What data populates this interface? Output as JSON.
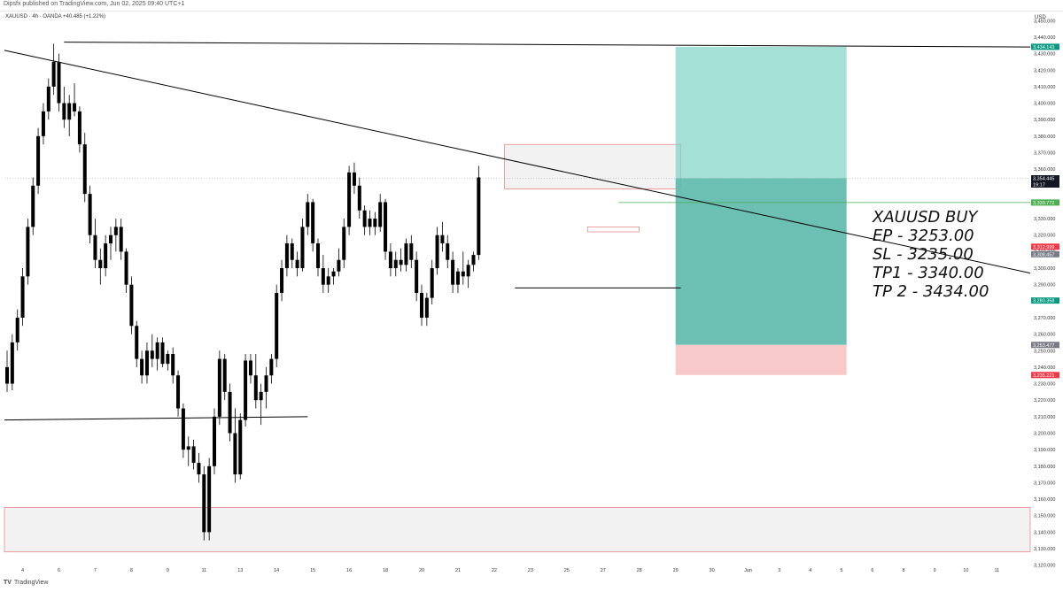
{
  "header": {
    "publisher": "Dipsfx published on TradingView.com, Jun 02, 2025 09:40 UTC+1"
  },
  "symbol": {
    "line": "XAUUSD · 4h · OANDA  +40.485 (+1.22%)"
  },
  "axis": {
    "currency": "USD"
  },
  "footer": {
    "logo": "TV",
    "brand": "TradingView"
  },
  "colors": {
    "bull": "#000000",
    "bear": "#000000",
    "target_zone": "#7fd3c6",
    "entry_zone": "#5cb8ab",
    "stop_zone": "#f8c9c9",
    "supply_fill": "#f2f2f2",
    "zone_border": "#e06666",
    "tag_tp": "#089981",
    "tag_last": "#131722",
    "tag_green": "#4caf50",
    "tag_red": "#f23645",
    "tag_gray": "#787b86"
  },
  "chart_data": {
    "type": "candlestick",
    "title": "",
    "ylim": [
      3115,
      3455
    ],
    "y_ticks": [
      3120,
      3130,
      3140,
      3150,
      3160,
      3170,
      3180,
      3190,
      3200,
      3210,
      3220,
      3230,
      3240,
      3250,
      3260,
      3270,
      3280,
      3290,
      3300,
      3310,
      3320,
      3330,
      3340,
      3350,
      3360,
      3370,
      3380,
      3390,
      3400,
      3410,
      3420,
      3430,
      3440,
      3450
    ],
    "x_tick_labels": [
      "4",
      "6",
      "7",
      "8",
      "9",
      "11",
      "13",
      "14",
      "15",
      "16",
      "18",
      "20",
      "21",
      "22",
      "23",
      "25",
      "27",
      "28",
      "29",
      "30",
      "Jun",
      "3",
      "4",
      "5",
      "6",
      "8",
      "9",
      "10",
      "11"
    ],
    "x_tick_bars": [
      3,
      10,
      17,
      24,
      31,
      38,
      45,
      52,
      59,
      66,
      73,
      80,
      87,
      94,
      101,
      108,
      115,
      122,
      129,
      136,
      143,
      149,
      155,
      161,
      167,
      173,
      179,
      185,
      191
    ],
    "candles": [
      [
        3240,
        3250,
        3225,
        3230
      ],
      [
        3230,
        3260,
        3226,
        3255
      ],
      [
        3255,
        3275,
        3250,
        3270
      ],
      [
        3270,
        3300,
        3265,
        3295
      ],
      [
        3295,
        3330,
        3290,
        3325
      ],
      [
        3325,
        3355,
        3320,
        3350
      ],
      [
        3350,
        3385,
        3345,
        3380
      ],
      [
        3380,
        3400,
        3375,
        3395
      ],
      [
        3395,
        3415,
        3390,
        3410
      ],
      [
        3410,
        3436,
        3405,
        3425
      ],
      [
        3425,
        3430,
        3395,
        3400
      ],
      [
        3400,
        3410,
        3385,
        3390
      ],
      [
        3390,
        3405,
        3380,
        3400
      ],
      [
        3400,
        3412,
        3392,
        3395
      ],
      [
        3395,
        3398,
        3370,
        3375
      ],
      [
        3375,
        3382,
        3340,
        3345
      ],
      [
        3345,
        3350,
        3315,
        3320
      ],
      [
        3320,
        3330,
        3300,
        3305
      ],
      [
        3305,
        3312,
        3290,
        3300
      ],
      [
        3300,
        3320,
        3295,
        3315
      ],
      [
        3315,
        3325,
        3305,
        3320
      ],
      [
        3320,
        3330,
        3310,
        3325
      ],
      [
        3325,
        3330,
        3305,
        3310
      ],
      [
        3310,
        3312,
        3285,
        3290
      ],
      [
        3290,
        3295,
        3260,
        3265
      ],
      [
        3265,
        3268,
        3240,
        3245
      ],
      [
        3245,
        3250,
        3230,
        3235
      ],
      [
        3235,
        3255,
        3230,
        3250
      ],
      [
        3250,
        3260,
        3240,
        3245
      ],
      [
        3245,
        3258,
        3238,
        3255
      ],
      [
        3255,
        3258,
        3240,
        3242
      ],
      [
        3242,
        3250,
        3238,
        3248
      ],
      [
        3248,
        3252,
        3230,
        3235
      ],
      [
        3235,
        3238,
        3210,
        3215
      ],
      [
        3215,
        3218,
        3185,
        3190
      ],
      [
        3190,
        3198,
        3180,
        3192
      ],
      [
        3192,
        3196,
        3178,
        3182
      ],
      [
        3182,
        3188,
        3170,
        3175
      ],
      [
        3175,
        3180,
        3135,
        3140
      ],
      [
        3140,
        3185,
        3135,
        3180
      ],
      [
        3180,
        3215,
        3175,
        3210
      ],
      [
        3210,
        3250,
        3205,
        3245
      ],
      [
        3245,
        3248,
        3220,
        3225
      ],
      [
        3225,
        3230,
        3195,
        3200
      ],
      [
        3200,
        3215,
        3170,
        3175
      ],
      [
        3175,
        3212,
        3172,
        3208
      ],
      [
        3208,
        3248,
        3204,
        3244
      ],
      [
        3244,
        3248,
        3230,
        3235
      ],
      [
        3235,
        3248,
        3215,
        3220
      ],
      [
        3220,
        3230,
        3205,
        3225
      ],
      [
        3225,
        3240,
        3215,
        3235
      ],
      [
        3235,
        3248,
        3230,
        3245
      ],
      [
        3245,
        3290,
        3240,
        3285
      ],
      [
        3285,
        3305,
        3280,
        3300
      ],
      [
        3300,
        3320,
        3295,
        3315
      ],
      [
        3315,
        3318,
        3300,
        3305
      ],
      [
        3305,
        3310,
        3295,
        3300
      ],
      [
        3300,
        3330,
        3298,
        3325
      ],
      [
        3325,
        3345,
        3320,
        3340
      ],
      [
        3340,
        3342,
        3310,
        3315
      ],
      [
        3315,
        3318,
        3295,
        3300
      ],
      [
        3300,
        3308,
        3285,
        3290
      ],
      [
        3290,
        3300,
        3285,
        3295
      ],
      [
        3295,
        3300,
        3290,
        3298
      ],
      [
        3298,
        3312,
        3295,
        3305
      ],
      [
        3305,
        3330,
        3300,
        3325
      ],
      [
        3325,
        3362,
        3320,
        3358
      ],
      [
        3358,
        3364,
        3345,
        3350
      ],
      [
        3350,
        3355,
        3330,
        3335
      ],
      [
        3335,
        3338,
        3320,
        3325
      ],
      [
        3325,
        3335,
        3320,
        3330
      ],
      [
        3330,
        3334,
        3320,
        3325
      ],
      [
        3325,
        3345,
        3322,
        3340
      ],
      [
        3340,
        3342,
        3305,
        3310
      ],
      [
        3310,
        3315,
        3295,
        3300
      ],
      [
        3300,
        3310,
        3295,
        3305
      ],
      [
        3305,
        3312,
        3298,
        3302
      ],
      [
        3302,
        3318,
        3298,
        3315
      ],
      [
        3315,
        3320,
        3300,
        3305
      ],
      [
        3305,
        3310,
        3280,
        3285
      ],
      [
        3285,
        3290,
        3265,
        3270
      ],
      [
        3270,
        3285,
        3265,
        3282
      ],
      [
        3282,
        3305,
        3278,
        3300
      ],
      [
        3300,
        3325,
        3296,
        3320
      ],
      [
        3320,
        3328,
        3310,
        3315
      ],
      [
        3315,
        3320,
        3300,
        3305
      ],
      [
        3305,
        3310,
        3285,
        3290
      ],
      [
        3290,
        3300,
        3285,
        3298
      ],
      [
        3298,
        3310,
        3290,
        3295
      ],
      [
        3295,
        3305,
        3288,
        3302
      ],
      [
        3302,
        3310,
        3298,
        3308
      ],
      [
        3308,
        3362,
        3305,
        3355
      ]
    ],
    "levels": {
      "target": 3434.143,
      "last": 3354.445,
      "tp1": 3339.772,
      "red_tag": 3312.999,
      "gray_tag": 3308.457,
      "green_tag": 3280.358,
      "entry": 3253.477,
      "stop": 3235.221
    },
    "tags": [
      {
        "label": "3,434.143",
        "color": "#089981",
        "price": 3434.143
      },
      {
        "label": "3,354.445",
        "sub": "19:17",
        "color": "#131722",
        "price": 3354.445
      },
      {
        "label": "3,339.772",
        "color": "#4caf50",
        "price": 3339.772
      },
      {
        "label": "3,312.999",
        "color": "#f23645",
        "price": 3312.999
      },
      {
        "label": "3,308.457",
        "color": "#787b86",
        "price": 3308.457
      },
      {
        "label": "3,280.358",
        "color": "#089981",
        "price": 3280.358
      },
      {
        "label": "3,253.477",
        "color": "#787b86",
        "price": 3253.477
      },
      {
        "label": "3,235.221",
        "color": "#f23645",
        "price": 3235.221
      }
    ],
    "annotation": [
      "XAUUSD BUY",
      "EP - 3253.00",
      "SL - 3235.00",
      "TP1 - 3340.00",
      "TP 2 - 3434.00"
    ]
  }
}
